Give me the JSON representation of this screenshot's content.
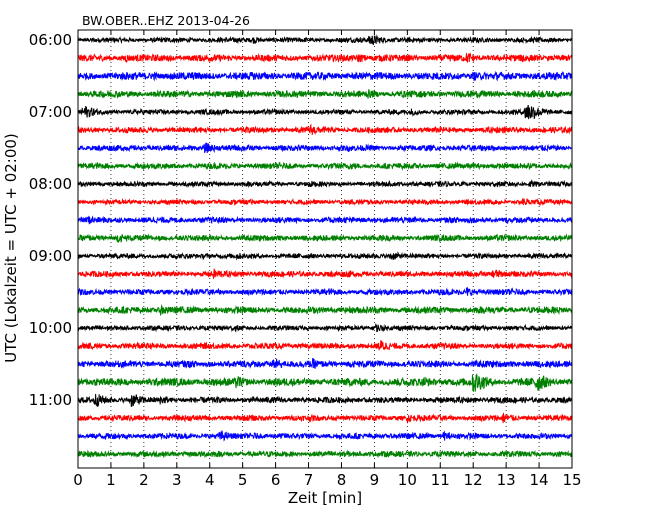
{
  "chart_data": {
    "type": "line",
    "title": "BW.OBER..EHZ 2013-04-26",
    "xlabel": "Zeit  [min]",
    "ylabel": "UTC (Lokalzeit = UTC + 02:00)",
    "xlim": [
      0,
      15
    ],
    "x_ticks": [
      0,
      1,
      2,
      3,
      4,
      5,
      6,
      7,
      8,
      9,
      10,
      11,
      12,
      13,
      14,
      15
    ],
    "y_tick_labels": [
      "06:00",
      "07:00",
      "08:00",
      "09:00",
      "10:00",
      "11:00"
    ],
    "grid": "vertical-dotted",
    "trace_colors": [
      "#000000",
      "#ff0000",
      "#0000ff",
      "#008000"
    ],
    "series": [
      {
        "start": "06:00",
        "amplitude": 2.5,
        "events": [
          {
            "t": 8.85,
            "a": 7
          },
          {
            "t": 5.3,
            "a": 4
          }
        ]
      },
      {
        "start": "06:15",
        "amplitude": 3.5,
        "events": [
          {
            "t": 1.4,
            "a": 5
          },
          {
            "t": 8.5,
            "a": 5
          },
          {
            "t": 11.8,
            "a": 6
          },
          {
            "t": 13.5,
            "a": 6
          }
        ]
      },
      {
        "start": "06:30",
        "amplitude": 4.0,
        "events": [
          {
            "t": 12.0,
            "a": 5
          },
          {
            "t": 14.5,
            "a": 5
          },
          {
            "t": 2.3,
            "a": 4
          }
        ]
      },
      {
        "start": "06:45",
        "amplitude": 3.5,
        "events": [
          {
            "t": 0.8,
            "a": 5
          },
          {
            "t": 8.8,
            "a": 5
          }
        ]
      },
      {
        "start": "07:00",
        "amplitude": 2.5,
        "events": [
          {
            "t": 0.15,
            "a": 8
          },
          {
            "t": 13.6,
            "a": 12
          },
          {
            "t": 10.1,
            "a": 4
          }
        ]
      },
      {
        "start": "07:15",
        "amplitude": 3.0,
        "events": [
          {
            "t": 7.05,
            "a": 6
          }
        ]
      },
      {
        "start": "07:30",
        "amplitude": 3.0,
        "events": [
          {
            "t": 3.85,
            "a": 6
          },
          {
            "t": 8.2,
            "a": 4
          }
        ]
      },
      {
        "start": "07:45",
        "amplitude": 3.0,
        "events": [
          {
            "t": 8.3,
            "a": 4
          },
          {
            "t": 1.0,
            "a": 3
          }
        ]
      },
      {
        "start": "08:00",
        "amplitude": 2.5,
        "events": [
          {
            "t": 7.0,
            "a": 4
          },
          {
            "t": 13.7,
            "a": 4
          }
        ]
      },
      {
        "start": "08:15",
        "amplitude": 2.5,
        "events": [
          {
            "t": 13.5,
            "a": 4
          }
        ]
      },
      {
        "start": "08:30",
        "amplitude": 3.0,
        "events": [
          {
            "t": 0.3,
            "a": 5
          },
          {
            "t": 0.9,
            "a": 3
          }
        ]
      },
      {
        "start": "08:45",
        "amplitude": 3.0,
        "events": [
          {
            "t": 1.2,
            "a": 5
          }
        ]
      },
      {
        "start": "09:00",
        "amplitude": 2.5,
        "events": [
          {
            "t": 9.5,
            "a": 5
          },
          {
            "t": 4.8,
            "a": 4
          },
          {
            "t": 3.8,
            "a": 3
          }
        ]
      },
      {
        "start": "09:15",
        "amplitude": 3.0,
        "events": [
          {
            "t": 4.1,
            "a": 6
          },
          {
            "t": 12.6,
            "a": 6
          },
          {
            "t": 8.2,
            "a": 4
          }
        ]
      },
      {
        "start": "09:30",
        "amplitude": 3.0,
        "events": [
          {
            "t": 11.8,
            "a": 5
          },
          {
            "t": 7.7,
            "a": 4
          }
        ]
      },
      {
        "start": "09:45",
        "amplitude": 3.5,
        "events": [
          {
            "t": 2.5,
            "a": 6
          },
          {
            "t": 6.9,
            "a": 4
          }
        ]
      },
      {
        "start": "10:00",
        "amplitude": 2.5,
        "events": [
          {
            "t": 9.0,
            "a": 5
          },
          {
            "t": 4.7,
            "a": 4
          }
        ]
      },
      {
        "start": "10:15",
        "amplitude": 3.0,
        "events": [
          {
            "t": 9.15,
            "a": 7
          },
          {
            "t": 1.8,
            "a": 4
          }
        ]
      },
      {
        "start": "10:30",
        "amplitude": 3.5,
        "events": [
          {
            "t": 5.9,
            "a": 7
          },
          {
            "t": 7.1,
            "a": 6
          },
          {
            "t": 12.6,
            "a": 4
          }
        ]
      },
      {
        "start": "10:45",
        "amplitude": 4.0,
        "events": [
          {
            "t": 12.0,
            "a": 13
          },
          {
            "t": 13.9,
            "a": 11
          },
          {
            "t": 4.8,
            "a": 7
          },
          {
            "t": 10.5,
            "a": 6
          }
        ]
      },
      {
        "start": "11:00",
        "amplitude": 3.0,
        "events": [
          {
            "t": 0.5,
            "a": 8
          },
          {
            "t": 1.6,
            "a": 8
          },
          {
            "t": 2.5,
            "a": 5
          }
        ]
      },
      {
        "start": "11:15",
        "amplitude": 3.0,
        "events": [
          {
            "t": 10.0,
            "a": 5
          },
          {
            "t": 12.9,
            "a": 6
          }
        ]
      },
      {
        "start": "11:30",
        "amplitude": 3.0,
        "events": [
          {
            "t": 4.3,
            "a": 6
          },
          {
            "t": 11.1,
            "a": 5
          },
          {
            "t": 5.3,
            "a": 4
          }
        ]
      },
      {
        "start": "11:45",
        "amplitude": 3.0,
        "events": [
          {
            "t": 8.1,
            "a": 4
          }
        ]
      }
    ]
  }
}
